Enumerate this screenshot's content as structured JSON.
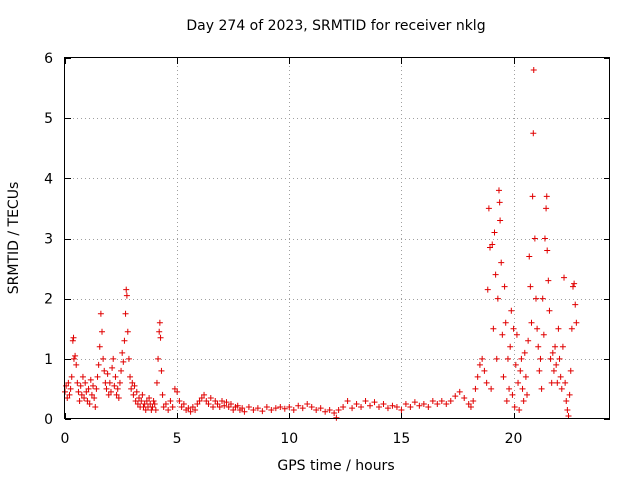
{
  "chart_data": {
    "type": "scatter",
    "title": "Day 274 of 2023, SRMTID for receiver nklg",
    "xlabel": "GPS time / hours",
    "ylabel": "SRMTID / TECUs",
    "xlim": [
      0,
      24.3
    ],
    "ylim": [
      0,
      6
    ],
    "xticks": [
      0,
      5,
      10,
      15,
      20
    ],
    "xtick_labels": [
      "0",
      "5",
      "10",
      "15",
      "20"
    ],
    "yticks": [
      0,
      1,
      2,
      3,
      4,
      5,
      6
    ],
    "ytick_labels": [
      "0",
      "1",
      "2",
      "3",
      "4",
      "5",
      "6"
    ],
    "grid": true,
    "marker": "+",
    "color": "#e00000",
    "series": [
      {
        "name": "SRMTID",
        "points": [
          [
            0.0,
            0.45
          ],
          [
            0.05,
            0.55
          ],
          [
            0.1,
            0.35
          ],
          [
            0.15,
            0.6
          ],
          [
            0.2,
            0.4
          ],
          [
            0.25,
            0.5
          ],
          [
            0.3,
            0.7
          ],
          [
            0.35,
            1.3
          ],
          [
            0.38,
            1.35
          ],
          [
            0.4,
            1.0
          ],
          [
            0.45,
            1.05
          ],
          [
            0.5,
            0.9
          ],
          [
            0.55,
            0.6
          ],
          [
            0.6,
            0.45
          ],
          [
            0.65,
            0.3
          ],
          [
            0.7,
            0.55
          ],
          [
            0.75,
            0.4
          ],
          [
            0.8,
            0.7
          ],
          [
            0.85,
            0.35
          ],
          [
            0.9,
            0.6
          ],
          [
            0.95,
            0.45
          ],
          [
            1.0,
            0.3
          ],
          [
            1.05,
            0.5
          ],
          [
            1.1,
            0.25
          ],
          [
            1.15,
            0.65
          ],
          [
            1.2,
            0.4
          ],
          [
            1.25,
            0.55
          ],
          [
            1.3,
            0.35
          ],
          [
            1.35,
            0.2
          ],
          [
            1.4,
            0.5
          ],
          [
            1.45,
            0.7
          ],
          [
            1.5,
            0.9
          ],
          [
            1.55,
            1.2
          ],
          [
            1.6,
            1.75
          ],
          [
            1.65,
            1.45
          ],
          [
            1.7,
            1.0
          ],
          [
            1.75,
            0.8
          ],
          [
            1.8,
            0.6
          ],
          [
            1.85,
            0.5
          ],
          [
            1.9,
            0.75
          ],
          [
            1.95,
            0.4
          ],
          [
            2.0,
            0.6
          ],
          [
            2.05,
            0.45
          ],
          [
            2.1,
            0.85
          ],
          [
            2.15,
            1.0
          ],
          [
            2.2,
            0.55
          ],
          [
            2.25,
            0.7
          ],
          [
            2.3,
            0.4
          ],
          [
            2.35,
            0.5
          ],
          [
            2.4,
            0.35
          ],
          [
            2.45,
            0.6
          ],
          [
            2.5,
            0.8
          ],
          [
            2.55,
            1.1
          ],
          [
            2.6,
            0.95
          ],
          [
            2.65,
            1.3
          ],
          [
            2.7,
            1.75
          ],
          [
            2.73,
            2.15
          ],
          [
            2.76,
            2.05
          ],
          [
            2.8,
            1.45
          ],
          [
            2.85,
            1.0
          ],
          [
            2.9,
            0.7
          ],
          [
            2.95,
            0.5
          ],
          [
            3.0,
            0.6
          ],
          [
            3.05,
            0.4
          ],
          [
            3.1,
            0.55
          ],
          [
            3.15,
            0.3
          ],
          [
            3.2,
            0.45
          ],
          [
            3.25,
            0.25
          ],
          [
            3.3,
            0.35
          ],
          [
            3.35,
            0.2
          ],
          [
            3.4,
            0.3
          ],
          [
            3.45,
            0.4
          ],
          [
            3.5,
            0.2
          ],
          [
            3.55,
            0.25
          ],
          [
            3.6,
            0.15
          ],
          [
            3.65,
            0.3
          ],
          [
            3.7,
            0.2
          ],
          [
            3.75,
            0.35
          ],
          [
            3.8,
            0.25
          ],
          [
            3.85,
            0.15
          ],
          [
            3.9,
            0.2
          ],
          [
            3.95,
            0.3
          ],
          [
            4.0,
            0.25
          ],
          [
            4.05,
            0.15
          ],
          [
            4.1,
            0.6
          ],
          [
            4.15,
            1.0
          ],
          [
            4.2,
            1.45
          ],
          [
            4.23,
            1.6
          ],
          [
            4.26,
            1.35
          ],
          [
            4.3,
            0.8
          ],
          [
            4.35,
            0.4
          ],
          [
            4.4,
            0.2
          ],
          [
            4.5,
            0.25
          ],
          [
            4.6,
            0.15
          ],
          [
            4.7,
            0.3
          ],
          [
            4.8,
            0.2
          ],
          [
            4.9,
            0.5
          ],
          [
            5.0,
            0.45
          ],
          [
            5.1,
            0.3
          ],
          [
            5.2,
            0.2
          ],
          [
            5.3,
            0.25
          ],
          [
            5.4,
            0.15
          ],
          [
            5.5,
            0.18
          ],
          [
            5.6,
            0.12
          ],
          [
            5.7,
            0.2
          ],
          [
            5.8,
            0.15
          ],
          [
            5.9,
            0.25
          ],
          [
            6.0,
            0.3
          ],
          [
            6.1,
            0.35
          ],
          [
            6.2,
            0.4
          ],
          [
            6.3,
            0.3
          ],
          [
            6.4,
            0.25
          ],
          [
            6.5,
            0.35
          ],
          [
            6.6,
            0.2
          ],
          [
            6.7,
            0.3
          ],
          [
            6.8,
            0.25
          ],
          [
            6.9,
            0.2
          ],
          [
            7.0,
            0.3
          ],
          [
            7.1,
            0.22
          ],
          [
            7.2,
            0.28
          ],
          [
            7.3,
            0.2
          ],
          [
            7.4,
            0.25
          ],
          [
            7.5,
            0.15
          ],
          [
            7.6,
            0.2
          ],
          [
            7.7,
            0.22
          ],
          [
            7.8,
            0.15
          ],
          [
            7.9,
            0.18
          ],
          [
            8.0,
            0.12
          ],
          [
            8.2,
            0.2
          ],
          [
            8.4,
            0.15
          ],
          [
            8.6,
            0.18
          ],
          [
            8.8,
            0.13
          ],
          [
            9.0,
            0.2
          ],
          [
            9.2,
            0.15
          ],
          [
            9.4,
            0.18
          ],
          [
            9.6,
            0.2
          ],
          [
            9.8,
            0.17
          ],
          [
            10.0,
            0.2
          ],
          [
            10.2,
            0.15
          ],
          [
            10.4,
            0.22
          ],
          [
            10.6,
            0.18
          ],
          [
            10.8,
            0.25
          ],
          [
            11.0,
            0.2
          ],
          [
            11.2,
            0.15
          ],
          [
            11.4,
            0.18
          ],
          [
            11.6,
            0.12
          ],
          [
            11.8,
            0.15
          ],
          [
            12.0,
            0.1
          ],
          [
            12.1,
            0.02
          ],
          [
            12.2,
            0.15
          ],
          [
            12.4,
            0.2
          ],
          [
            12.6,
            0.3
          ],
          [
            12.8,
            0.18
          ],
          [
            13.0,
            0.25
          ],
          [
            13.2,
            0.2
          ],
          [
            13.4,
            0.3
          ],
          [
            13.6,
            0.22
          ],
          [
            13.8,
            0.28
          ],
          [
            14.0,
            0.2
          ],
          [
            14.2,
            0.25
          ],
          [
            14.4,
            0.18
          ],
          [
            14.6,
            0.22
          ],
          [
            14.8,
            0.2
          ],
          [
            15.0,
            0.15
          ],
          [
            15.2,
            0.25
          ],
          [
            15.4,
            0.2
          ],
          [
            15.6,
            0.28
          ],
          [
            15.8,
            0.22
          ],
          [
            16.0,
            0.25
          ],
          [
            16.2,
            0.2
          ],
          [
            16.4,
            0.3
          ],
          [
            16.6,
            0.25
          ],
          [
            16.8,
            0.3
          ],
          [
            17.0,
            0.25
          ],
          [
            17.2,
            0.3
          ],
          [
            17.4,
            0.38
          ],
          [
            17.6,
            0.45
          ],
          [
            17.8,
            0.35
          ],
          [
            18.0,
            0.25
          ],
          [
            18.1,
            0.2
          ],
          [
            18.2,
            0.3
          ],
          [
            18.3,
            0.5
          ],
          [
            18.4,
            0.7
          ],
          [
            18.5,
            0.9
          ],
          [
            18.6,
            1.0
          ],
          [
            18.7,
            0.8
          ],
          [
            18.8,
            0.6
          ],
          [
            18.85,
            2.15
          ],
          [
            18.9,
            3.5
          ],
          [
            18.95,
            2.85
          ],
          [
            19.0,
            0.5
          ],
          [
            19.05,
            2.9
          ],
          [
            19.1,
            1.5
          ],
          [
            19.15,
            3.1
          ],
          [
            19.2,
            2.4
          ],
          [
            19.25,
            1.0
          ],
          [
            19.3,
            2.0
          ],
          [
            19.35,
            3.8
          ],
          [
            19.38,
            3.6
          ],
          [
            19.4,
            3.3
          ],
          [
            19.45,
            2.6
          ],
          [
            19.5,
            1.4
          ],
          [
            19.55,
            0.7
          ],
          [
            19.6,
            2.2
          ],
          [
            19.65,
            1.6
          ],
          [
            19.7,
            0.3
          ],
          [
            19.75,
            1.0
          ],
          [
            19.8,
            0.5
          ],
          [
            19.85,
            1.2
          ],
          [
            19.9,
            1.8
          ],
          [
            19.95,
            0.4
          ],
          [
            20.0,
            1.5
          ],
          [
            20.05,
            0.2
          ],
          [
            20.1,
            0.9
          ],
          [
            20.15,
            1.4
          ],
          [
            20.2,
            0.6
          ],
          [
            20.25,
            0.15
          ],
          [
            20.3,
            0.8
          ],
          [
            20.35,
            1.0
          ],
          [
            20.4,
            0.5
          ],
          [
            20.45,
            0.3
          ],
          [
            20.5,
            1.1
          ],
          [
            20.55,
            0.7
          ],
          [
            20.6,
            0.4
          ],
          [
            20.65,
            1.3
          ],
          [
            20.7,
            2.7
          ],
          [
            20.75,
            2.2
          ],
          [
            20.8,
            1.6
          ],
          [
            20.85,
            3.7
          ],
          [
            20.88,
            4.75
          ],
          [
            20.9,
            5.8
          ],
          [
            20.95,
            3.0
          ],
          [
            21.0,
            2.0
          ],
          [
            21.05,
            1.5
          ],
          [
            21.1,
            1.2
          ],
          [
            21.15,
            0.8
          ],
          [
            21.2,
            1.0
          ],
          [
            21.25,
            0.5
          ],
          [
            21.3,
            2.0
          ],
          [
            21.35,
            1.4
          ],
          [
            21.4,
            3.0
          ],
          [
            21.45,
            3.5
          ],
          [
            21.48,
            3.7
          ],
          [
            21.5,
            2.8
          ],
          [
            21.55,
            2.3
          ],
          [
            21.6,
            1.8
          ],
          [
            21.65,
            1.0
          ],
          [
            21.7,
            0.6
          ],
          [
            21.75,
            1.1
          ],
          [
            21.8,
            0.8
          ],
          [
            21.85,
            1.2
          ],
          [
            21.9,
            0.9
          ],
          [
            21.95,
            0.6
          ],
          [
            22.0,
            1.5
          ],
          [
            22.05,
            1.0
          ],
          [
            22.1,
            0.7
          ],
          [
            22.15,
            0.5
          ],
          [
            22.2,
            1.2
          ],
          [
            22.25,
            2.35
          ],
          [
            22.3,
            0.6
          ],
          [
            22.35,
            0.3
          ],
          [
            22.4,
            0.15
          ],
          [
            22.45,
            0.05
          ],
          [
            22.5,
            0.4
          ],
          [
            22.55,
            0.8
          ],
          [
            22.6,
            1.5
          ],
          [
            22.65,
            2.2
          ],
          [
            22.7,
            2.25
          ],
          [
            22.75,
            1.9
          ],
          [
            22.8,
            1.6
          ]
        ]
      }
    ]
  }
}
